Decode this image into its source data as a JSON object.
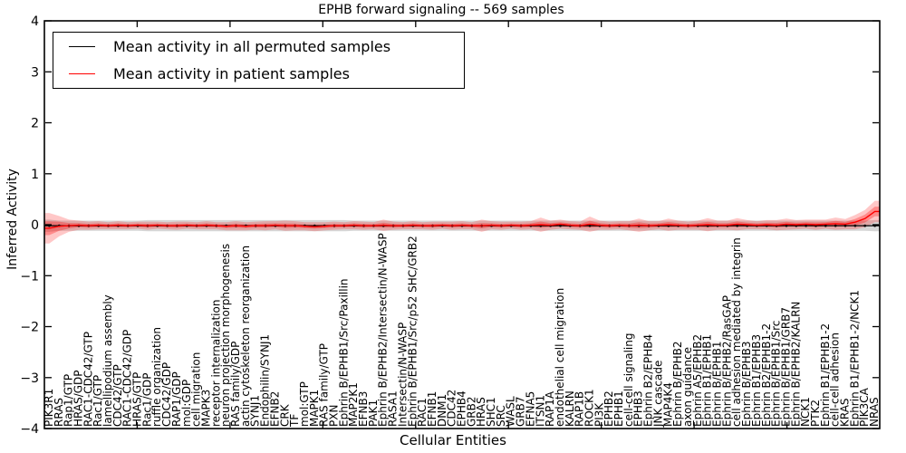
{
  "title": "EPHB forward signaling -- 569 samples",
  "legend": [
    {
      "label": "Mean activity in all permuted samples",
      "color": "#000000"
    },
    {
      "label": "Mean activity in patient samples",
      "color": "#ff0000"
    }
  ],
  "colors": {
    "permuted_line": "#000000",
    "patient_line": "#ff0000",
    "permuted_band": "rgba(0,0,0,0.16)",
    "patient_band": "rgba(255,0,0,0.22)",
    "patient_band_inner": "rgba(255,0,0,0.30)"
  },
  "chart_data": {
    "type": "line",
    "title": "EPHB forward signaling -- 569 samples",
    "xlabel": "Cellular Entities",
    "ylabel": "Inferred Activity",
    "ylim": [
      -4,
      4
    ],
    "yticks": [
      -4,
      -3,
      -2,
      -1,
      0,
      1,
      2,
      3,
      4
    ],
    "grid": false,
    "legend_position": "upper left",
    "categories": [
      "PIK3R1",
      "RRAS",
      "Rap1/GTP",
      "HRAS/GDP",
      "RAC1-CDC42/GTP",
      "Rac1/GTP",
      "lamellipodium assembly",
      "CDC42/GTP",
      "RAC1-CDC42/GDP",
      "HRAS/GTP",
      "Rac1/GDP",
      "ruffle organization",
      "CDC42/GDP",
      "RAP1/GDP",
      "mol:GDP",
      "cell migration",
      "MAPK3",
      "receptor internalization",
      "neuron projection morphogenesis",
      "RAS family/GDP",
      "actin cytoskeleton reorganization",
      "SYNJ1",
      "Endophilin/SYNJ1",
      "EFNB2",
      "CRK",
      "TF",
      "mol:GTP",
      "MAPK1",
      "RAS family/GTP",
      "PXN",
      "Ephrin B/EPHB1/Src/Paxillin",
      "MAP2K1",
      "EFNB3",
      "PAK1",
      "Ephrin B/EPHB2/Intersectin/N-WASP",
      "RASA1",
      "Intersectin/N-WASP",
      "Ephrin B/EPHB1/Src/p52 SHC/GRB2",
      "RAC1",
      "EFNB1",
      "DNM1",
      "CDC42",
      "EPHB4",
      "GRB2",
      "HRAS",
      "SHC1",
      "SRC",
      "WASL",
      "GRB7",
      "EFNA5",
      "ITSN1",
      "RAP1A",
      "endothelial cell migration",
      "KALRN",
      "RAP1B",
      "ROCK1",
      "PI3K",
      "EPHB2",
      "EPHB1",
      "cell-cell signaling",
      "EPHB3",
      "Ephrin B2/EPHB4",
      "JNK cascade",
      "MAP4K4",
      "Ephrin B/EPHB2",
      "axon guidance",
      "Ephrin A5/EPHB2",
      "Ephrin B1/EPHB1",
      "Ephrin B/EPHB1",
      "Ephrin B/EPHB2/RasGAP",
      "cell adhesion mediated by integrin",
      "Ephrin B/EPHB3",
      "Ephrin B1/EPHB3",
      "Ephrin B2/EPHB1-2",
      "Ephrin B/EPHB1/Src",
      "Ephrin B/EPHB1/GRB7",
      "Ephrin B/EPHB2/KALRN",
      "NCK1",
      "PTK2",
      "Ephrin B1/EPHB1-2",
      "cell-cell adhesion",
      "KRAS",
      "Ephrin B1/EPHB1-2/NCK1",
      "PIK3CA",
      "NRAS"
    ],
    "series": [
      {
        "name": "Mean activity in all permuted samples",
        "color": "#000000",
        "values": [
          -0.02,
          -0.02,
          -0.02,
          -0.02,
          -0.02,
          -0.02,
          -0.02,
          -0.02,
          -0.02,
          -0.02,
          -0.02,
          -0.02,
          -0.02,
          -0.02,
          -0.02,
          -0.02,
          -0.02,
          -0.02,
          -0.02,
          -0.02,
          -0.02,
          -0.02,
          -0.02,
          -0.02,
          -0.02,
          -0.02,
          -0.02,
          -0.02,
          -0.02,
          -0.02,
          -0.02,
          -0.02,
          -0.02,
          -0.02,
          -0.02,
          -0.02,
          -0.02,
          -0.02,
          -0.02,
          -0.02,
          -0.02,
          -0.02,
          -0.02,
          -0.02,
          -0.02,
          -0.02,
          -0.02,
          -0.02,
          -0.02,
          -0.02,
          -0.02,
          -0.02,
          -0.02,
          -0.02,
          -0.02,
          -0.02,
          -0.02,
          -0.02,
          -0.02,
          -0.02,
          -0.02,
          -0.02,
          -0.02,
          -0.02,
          -0.02,
          -0.02,
          -0.02,
          -0.02,
          -0.02,
          -0.02,
          -0.02,
          -0.02,
          -0.02,
          -0.02,
          -0.02,
          -0.02,
          -0.02,
          -0.02,
          -0.02,
          -0.02,
          -0.02,
          -0.02,
          -0.02,
          -0.02,
          -0.02
        ],
        "band_halfwidth": [
          0.12,
          0.1,
          0.1,
          0.1,
          0.1,
          0.1,
          0.1,
          0.1,
          0.1,
          0.1,
          0.11,
          0.11,
          0.11,
          0.11,
          0.11,
          0.11,
          0.11,
          0.11,
          0.11,
          0.11,
          0.11,
          0.11,
          0.11,
          0.11,
          0.11,
          0.11,
          0.11,
          0.11,
          0.11,
          0.11,
          0.11,
          0.1,
          0.1,
          0.1,
          0.1,
          0.1,
          0.1,
          0.1,
          0.1,
          0.1,
          0.1,
          0.1,
          0.1,
          0.1,
          0.1,
          0.1,
          0.1,
          0.1,
          0.1,
          0.1,
          0.1,
          0.1,
          0.1,
          0.1,
          0.1,
          0.1,
          0.1,
          0.1,
          0.1,
          0.1,
          0.1,
          0.1,
          0.1,
          0.1,
          0.1,
          0.1,
          0.1,
          0.1,
          0.1,
          0.1,
          0.1,
          0.1,
          0.1,
          0.1,
          0.1,
          0.1,
          0.1,
          0.1,
          0.1,
          0.1,
          0.1,
          0.1,
          0.1,
          0.1,
          0.11
        ]
      },
      {
        "name": "Mean activity in patient samples",
        "color": "#ff0000",
        "values": [
          -0.07,
          -0.03,
          -0.02,
          -0.01,
          -0.02,
          -0.01,
          -0.02,
          -0.01,
          -0.02,
          -0.01,
          -0.02,
          -0.01,
          -0.02,
          -0.02,
          -0.01,
          -0.02,
          -0.01,
          -0.02,
          -0.03,
          -0.02,
          -0.03,
          -0.02,
          -0.02,
          -0.01,
          -0.02,
          -0.02,
          -0.03,
          -0.04,
          -0.03,
          -0.02,
          -0.02,
          -0.01,
          -0.02,
          -0.02,
          -0.01,
          -0.02,
          -0.02,
          -0.01,
          -0.02,
          -0.02,
          -0.01,
          -0.02,
          -0.01,
          -0.02,
          -0.02,
          -0.01,
          -0.02,
          -0.01,
          -0.02,
          -0.01,
          0.0,
          -0.01,
          0.01,
          -0.01,
          -0.02,
          0.01,
          -0.01,
          -0.02,
          -0.01,
          -0.02,
          -0.01,
          -0.02,
          -0.01,
          0.0,
          -0.01,
          -0.02,
          -0.01,
          0.0,
          -0.01,
          -0.01,
          0.01,
          0.0,
          -0.01,
          0.0,
          -0.01,
          0.01,
          0.0,
          0.01,
          0.0,
          0.01,
          0.02,
          0.01,
          0.05,
          0.12,
          0.26
        ],
        "band_halfwidth": [
          0.3,
          0.2,
          0.12,
          0.09,
          0.08,
          0.08,
          0.07,
          0.08,
          0.07,
          0.07,
          0.08,
          0.07,
          0.07,
          0.08,
          0.07,
          0.07,
          0.08,
          0.07,
          0.08,
          0.09,
          0.08,
          0.08,
          0.09,
          0.08,
          0.1,
          0.09,
          0.08,
          0.09,
          0.08,
          0.08,
          0.07,
          0.08,
          0.08,
          0.07,
          0.11,
          0.08,
          0.07,
          0.08,
          0.07,
          0.08,
          0.07,
          0.08,
          0.08,
          0.07,
          0.12,
          0.08,
          0.08,
          0.07,
          0.08,
          0.08,
          0.14,
          0.09,
          0.09,
          0.08,
          0.08,
          0.15,
          0.09,
          0.08,
          0.08,
          0.09,
          0.13,
          0.09,
          0.08,
          0.12,
          0.09,
          0.08,
          0.09,
          0.13,
          0.09,
          0.09,
          0.12,
          0.09,
          0.08,
          0.09,
          0.1,
          0.11,
          0.09,
          0.09,
          0.1,
          0.09,
          0.12,
          0.1,
          0.14,
          0.17,
          0.21
        ]
      }
    ]
  }
}
